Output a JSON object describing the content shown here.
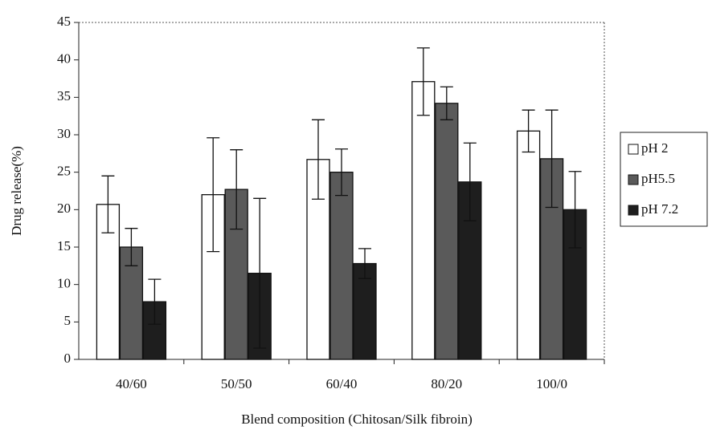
{
  "chart_data": {
    "type": "bar",
    "x_label": "Blend composition (Chitosan/Silk fibroin)",
    "y_label": "Drug release(%)",
    "categories": [
      "40/60",
      "50/50",
      "60/40",
      "80/20",
      "100/0"
    ],
    "series": [
      {
        "name": "pH 2",
        "color": "#ffffff",
        "values": [
          20.7,
          22,
          26.7,
          37.1,
          30.5
        ],
        "errors": [
          3.8,
          7.6,
          5.3,
          4.5,
          2.8
        ]
      },
      {
        "name": "pH5.5",
        "color": "#5a5a5a",
        "values": [
          15.0,
          22.7,
          25.0,
          34.2,
          26.8
        ],
        "errors": [
          2.5,
          5.3,
          3.1,
          2.2,
          6.5
        ]
      },
      {
        "name": "pH 7.2",
        "color": "#1e1e1e",
        "values": [
          7.7,
          11.5,
          12.8,
          23.7,
          20.0
        ],
        "errors": [
          3.0,
          10.0,
          2.0,
          5.2,
          5.1
        ]
      }
    ],
    "ylim": [
      0,
      45
    ],
    "yticks": [
      0,
      5,
      10,
      15,
      20,
      25,
      30,
      35,
      40,
      45
    ],
    "legend": "right"
  }
}
